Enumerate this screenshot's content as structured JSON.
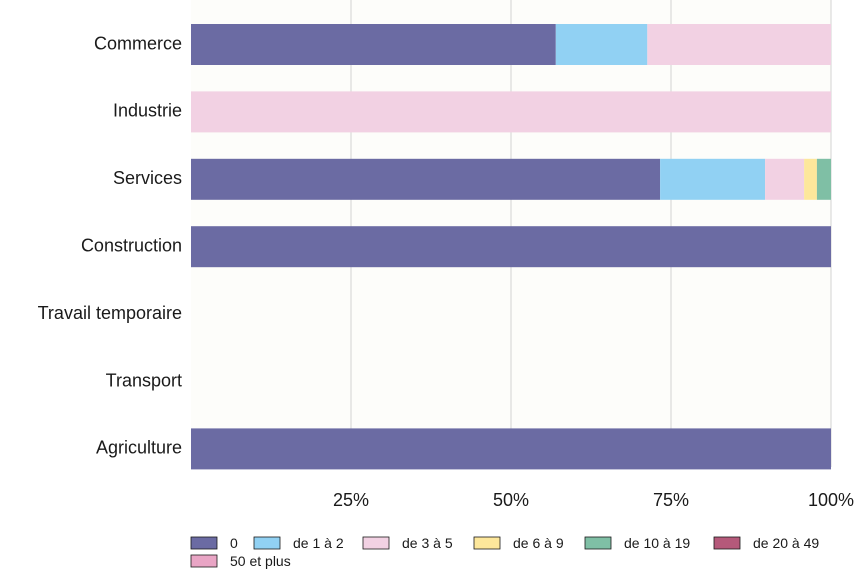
{
  "chart_data": {
    "type": "bar",
    "orientation": "horizontal",
    "stacked": true,
    "normalized_percent": true,
    "categories": [
      "Commerce",
      "Industrie",
      "Services",
      "Construction",
      "Travail temporaire",
      "Transport",
      "Agriculture"
    ],
    "series": [
      {
        "name": "0",
        "color": "#6b6ba3",
        "values": [
          57,
          0,
          73.3,
          100,
          0,
          0,
          100
        ]
      },
      {
        "name": "de 1 à 2",
        "color": "#91d1f3",
        "values": [
          14.3,
          0,
          16.4,
          0,
          0,
          0,
          0
        ]
      },
      {
        "name": "de 3 à 5",
        "color": "#f2d1e3",
        "values": [
          28.7,
          100,
          6.1,
          0,
          0,
          0,
          0
        ]
      },
      {
        "name": "de 6 à 9",
        "color": "#fde79b",
        "values": [
          0,
          0,
          2,
          0,
          0,
          0,
          0
        ]
      },
      {
        "name": "de 10 à 19",
        "color": "#7fbfa5",
        "values": [
          0,
          0,
          2.2,
          0,
          0,
          0,
          0
        ]
      },
      {
        "name": "de 20 à 49",
        "color": "#b5597a",
        "values": [
          0,
          0,
          0,
          0,
          0,
          0,
          0
        ]
      },
      {
        "name": "50 et plus",
        "color": "#e9a5c5",
        "values": [
          0,
          0,
          0,
          0,
          0,
          0,
          0
        ]
      }
    ],
    "xlim": [
      0,
      100
    ],
    "xticks": [
      25,
      50,
      75,
      100
    ],
    "xtick_labels": [
      "25%",
      "50%",
      "75%",
      "100%"
    ],
    "grid": "vertical",
    "legend": "bottom",
    "plot_background": "#fdfdfa",
    "grid_color": "#d3d3d3"
  }
}
